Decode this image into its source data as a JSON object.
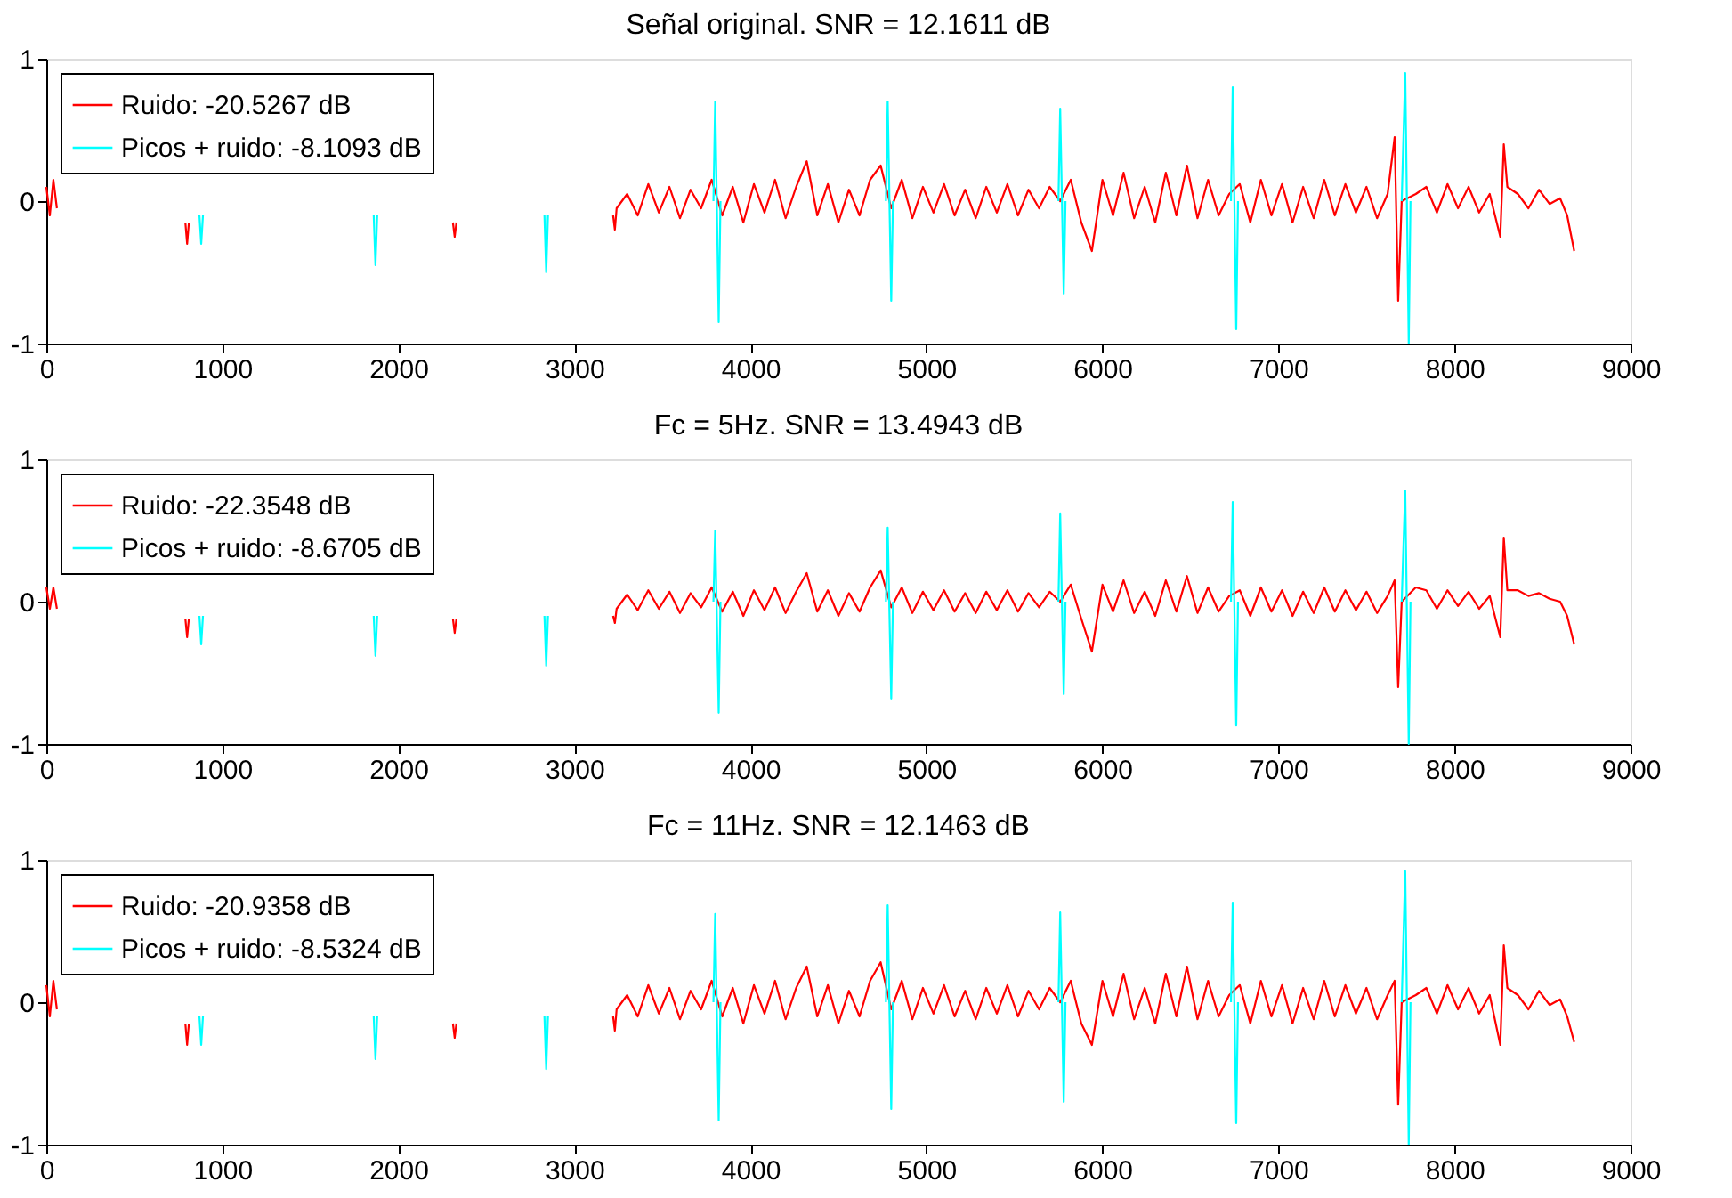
{
  "chart_data": [
    {
      "type": "line",
      "title": "Señal original. SNR = 12.1611 dB",
      "xlim": [
        0,
        9000
      ],
      "xticks": [
        0,
        1000,
        2000,
        3000,
        4000,
        5000,
        6000,
        7000,
        8000,
        9000
      ],
      "ylim": [
        -1,
        1
      ],
      "yticks": [
        -1,
        0,
        1
      ],
      "grid": false,
      "legend": "top left",
      "marker": "none",
      "line_style": "solid",
      "x": [
        0,
        20,
        40,
        60,
        70,
        790,
        800,
        810,
        820,
        2310,
        2320,
        2330,
        2340,
        3220,
        3230,
        3240,
        3300,
        3360,
        3420,
        3480,
        3540,
        3600,
        3660,
        3720,
        3780,
        3840,
        3900,
        3960,
        4020,
        4080,
        4140,
        4200,
        4260,
        4320,
        4380,
        4440,
        4500,
        4560,
        4620,
        4680,
        4740,
        4800,
        4860,
        4920,
        4980,
        5040,
        5100,
        5160,
        5220,
        5280,
        5340,
        5400,
        5460,
        5520,
        5580,
        5640,
        5700,
        5760,
        5820,
        5880,
        5940,
        6000,
        6060,
        6120,
        6180,
        6240,
        6300,
        6360,
        6420,
        6480,
        6540,
        6600,
        6660,
        6720,
        6780,
        6840,
        6900,
        6960,
        7020,
        7080,
        7140,
        7200,
        7260,
        7320,
        7380,
        7440,
        7500,
        7560,
        7620,
        7660,
        7680,
        7700,
        7780,
        7840,
        7900,
        7960,
        8020,
        8080,
        8140,
        8200,
        8260,
        8280,
        8300,
        8360,
        8420,
        8480,
        8540,
        8600,
        8640,
        8680
      ],
      "series": [
        {
          "name": "Ruido: -20.5267 dB",
          "color": "#ff0000",
          "values": [
            0.1,
            -0.1,
            0.15,
            -0.05,
            null,
            -0.15,
            -0.3,
            -0.15,
            null,
            -0.15,
            -0.25,
            -0.15,
            null,
            -0.1,
            -0.2,
            -0.05,
            0.05,
            -0.1,
            0.12,
            -0.08,
            0.1,
            -0.12,
            0.08,
            -0.05,
            0.15,
            -0.1,
            0.1,
            -0.15,
            0.12,
            -0.08,
            0.15,
            -0.12,
            0.1,
            0.28,
            -0.1,
            0.12,
            -0.15,
            0.08,
            -0.1,
            0.15,
            0.25,
            -0.05,
            0.15,
            -0.12,
            0.1,
            -0.08,
            0.12,
            -0.1,
            0.08,
            -0.12,
            0.1,
            -0.08,
            0.12,
            -0.1,
            0.08,
            -0.05,
            0.1,
            0.0,
            0.15,
            -0.15,
            -0.35,
            0.15,
            -0.1,
            0.2,
            -0.12,
            0.1,
            -0.15,
            0.2,
            -0.1,
            0.25,
            -0.12,
            0.15,
            -0.1,
            0.05,
            0.12,
            -0.15,
            0.15,
            -0.1,
            0.12,
            -0.15,
            0.1,
            -0.12,
            0.15,
            -0.1,
            0.12,
            -0.08,
            0.1,
            -0.12,
            0.05,
            0.45,
            -0.7,
            0.0,
            0.05,
            0.1,
            -0.08,
            0.12,
            -0.05,
            0.1,
            -0.08,
            0.05,
            -0.25,
            0.4,
            0.1,
            0.05,
            -0.05,
            0.08,
            -0.02,
            0.02,
            -0.1,
            -0.35
          ]
        },
        {
          "name": "Picos + ruido: -8.1093 dB",
          "color": "#00ffff",
          "x": [
            870,
            880,
            890,
            900,
            1860,
            1870,
            1880,
            1890,
            2830,
            2840,
            2850,
            2860,
            3790,
            3800,
            3820,
            3830,
            3840,
            4770,
            4780,
            4800,
            4810,
            4820,
            5750,
            5760,
            5780,
            5790,
            5800,
            6730,
            6740,
            6760,
            6770,
            6780,
            7700,
            7720,
            7740,
            7750
          ],
          "values": [
            -0.1,
            -0.3,
            -0.1,
            null,
            -0.1,
            -0.45,
            -0.1,
            null,
            -0.1,
            -0.5,
            -0.1,
            null,
            0,
            0.7,
            -0.85,
            0,
            null,
            0,
            0.7,
            -0.7,
            0,
            null,
            0,
            0.65,
            -0.65,
            0,
            null,
            0,
            0.8,
            -0.9,
            0,
            null,
            0,
            0.9,
            -1.0,
            0
          ]
        }
      ]
    },
    {
      "type": "line",
      "title": "Fc = 5Hz. SNR = 13.4943 dB",
      "xlim": [
        0,
        9000
      ],
      "xticks": [
        0,
        1000,
        2000,
        3000,
        4000,
        5000,
        6000,
        7000,
        8000,
        9000
      ],
      "ylim": [
        -1,
        1
      ],
      "yticks": [
        -1,
        0,
        1
      ],
      "grid": false,
      "legend": "top left",
      "marker": "none",
      "line_style": "solid",
      "x": [
        0,
        20,
        40,
        60,
        70,
        790,
        800,
        810,
        820,
        2310,
        2320,
        2330,
        2340,
        3220,
        3230,
        3240,
        3300,
        3360,
        3420,
        3480,
        3540,
        3600,
        3660,
        3720,
        3780,
        3840,
        3900,
        3960,
        4020,
        4080,
        4140,
        4200,
        4260,
        4320,
        4380,
        4440,
        4500,
        4560,
        4620,
        4680,
        4740,
        4800,
        4860,
        4920,
        4980,
        5040,
        5100,
        5160,
        5220,
        5280,
        5340,
        5400,
        5460,
        5520,
        5580,
        5640,
        5700,
        5760,
        5820,
        5880,
        5940,
        6000,
        6060,
        6120,
        6180,
        6240,
        6300,
        6360,
        6420,
        6480,
        6540,
        6600,
        6660,
        6720,
        6780,
        6840,
        6900,
        6960,
        7020,
        7080,
        7140,
        7200,
        7260,
        7320,
        7380,
        7440,
        7500,
        7560,
        7620,
        7660,
        7680,
        7700,
        7780,
        7840,
        7900,
        7960,
        8020,
        8080,
        8140,
        8200,
        8260,
        8280,
        8300,
        8360,
        8420,
        8480,
        8540,
        8600,
        8640,
        8680
      ],
      "series": [
        {
          "name": "Ruido: -22.3548 dB",
          "color": "#ff0000",
          "values": [
            0.1,
            -0.05,
            0.1,
            -0.05,
            null,
            -0.12,
            -0.25,
            -0.12,
            null,
            -0.12,
            -0.22,
            -0.12,
            null,
            -0.1,
            -0.15,
            -0.05,
            0.05,
            -0.06,
            0.08,
            -0.05,
            0.07,
            -0.08,
            0.06,
            -0.04,
            0.1,
            -0.07,
            0.07,
            -0.1,
            0.08,
            -0.06,
            0.1,
            -0.08,
            0.07,
            0.2,
            -0.07,
            0.08,
            -0.1,
            0.06,
            -0.07,
            0.1,
            0.22,
            -0.04,
            0.1,
            -0.08,
            0.07,
            -0.06,
            0.08,
            -0.07,
            0.06,
            -0.08,
            0.07,
            -0.06,
            0.08,
            -0.07,
            0.06,
            -0.04,
            0.07,
            0.0,
            0.12,
            -0.12,
            -0.35,
            0.12,
            -0.07,
            0.15,
            -0.08,
            0.07,
            -0.1,
            0.15,
            -0.07,
            0.18,
            -0.08,
            0.1,
            -0.07,
            0.04,
            0.08,
            -0.1,
            0.1,
            -0.07,
            0.08,
            -0.1,
            0.07,
            -0.08,
            0.1,
            -0.07,
            0.08,
            -0.06,
            0.07,
            -0.08,
            0.04,
            0.15,
            -0.6,
            0.0,
            0.1,
            0.08,
            -0.05,
            0.08,
            -0.03,
            0.07,
            -0.05,
            0.04,
            -0.25,
            0.45,
            0.08,
            0.08,
            0.04,
            0.06,
            0.02,
            0.0,
            -0.1,
            -0.3
          ]
        },
        {
          "name": "Picos + ruido: -8.6705 dB",
          "color": "#00ffff",
          "x": [
            870,
            880,
            890,
            900,
            1860,
            1870,
            1880,
            1890,
            2830,
            2840,
            2850,
            2860,
            3790,
            3800,
            3820,
            3830,
            3840,
            4770,
            4780,
            4800,
            4810,
            4820,
            5750,
            5760,
            5780,
            5790,
            5800,
            6730,
            6740,
            6760,
            6770,
            6780,
            7700,
            7720,
            7740,
            7750
          ],
          "values": [
            -0.1,
            -0.3,
            -0.1,
            null,
            -0.1,
            -0.38,
            -0.1,
            null,
            -0.1,
            -0.45,
            -0.1,
            null,
            0,
            0.5,
            -0.78,
            0,
            null,
            0,
            0.52,
            -0.68,
            0,
            null,
            0,
            0.62,
            -0.65,
            0,
            null,
            0,
            0.7,
            -0.87,
            0,
            null,
            0,
            0.78,
            -1.0,
            0
          ]
        }
      ]
    },
    {
      "type": "line",
      "title": "Fc = 11Hz. SNR = 12.1463 dB",
      "xlim": [
        0,
        9000
      ],
      "xticks": [
        0,
        1000,
        2000,
        3000,
        4000,
        5000,
        6000,
        7000,
        8000,
        9000
      ],
      "ylim": [
        -1,
        1
      ],
      "yticks": [
        -1,
        0,
        1
      ],
      "grid": false,
      "legend": "top left",
      "marker": "none",
      "line_style": "solid",
      "x": [
        0,
        20,
        40,
        60,
        70,
        790,
        800,
        810,
        820,
        2310,
        2320,
        2330,
        2340,
        3220,
        3230,
        3240,
        3300,
        3360,
        3420,
        3480,
        3540,
        3600,
        3660,
        3720,
        3780,
        3840,
        3900,
        3960,
        4020,
        4080,
        4140,
        4200,
        4260,
        4320,
        4380,
        4440,
        4500,
        4560,
        4620,
        4680,
        4740,
        4800,
        4860,
        4920,
        4980,
        5040,
        5100,
        5160,
        5220,
        5280,
        5340,
        5400,
        5460,
        5520,
        5580,
        5640,
        5700,
        5760,
        5820,
        5880,
        5940,
        6000,
        6060,
        6120,
        6180,
        6240,
        6300,
        6360,
        6420,
        6480,
        6540,
        6600,
        6660,
        6720,
        6780,
        6840,
        6900,
        6960,
        7020,
        7080,
        7140,
        7200,
        7260,
        7320,
        7380,
        7440,
        7500,
        7560,
        7620,
        7660,
        7680,
        7700,
        7780,
        7840,
        7900,
        7960,
        8020,
        8080,
        8140,
        8200,
        8260,
        8280,
        8300,
        8360,
        8420,
        8480,
        8540,
        8600,
        8640,
        8680
      ],
      "series": [
        {
          "name": "Ruido: -20.9358 dB",
          "color": "#ff0000",
          "values": [
            0.12,
            -0.1,
            0.15,
            -0.05,
            null,
            -0.15,
            -0.3,
            -0.15,
            null,
            -0.15,
            -0.25,
            -0.15,
            null,
            -0.1,
            -0.2,
            -0.05,
            0.05,
            -0.1,
            0.12,
            -0.08,
            0.1,
            -0.12,
            0.08,
            -0.05,
            0.15,
            -0.1,
            0.1,
            -0.15,
            0.12,
            -0.08,
            0.15,
            -0.12,
            0.1,
            0.25,
            -0.1,
            0.12,
            -0.15,
            0.08,
            -0.1,
            0.15,
            0.28,
            -0.05,
            0.15,
            -0.12,
            0.1,
            -0.08,
            0.12,
            -0.1,
            0.08,
            -0.12,
            0.1,
            -0.08,
            0.12,
            -0.1,
            0.08,
            -0.05,
            0.1,
            0.0,
            0.15,
            -0.15,
            -0.3,
            0.15,
            -0.1,
            0.2,
            -0.12,
            0.1,
            -0.15,
            0.2,
            -0.1,
            0.25,
            -0.12,
            0.15,
            -0.1,
            0.05,
            0.12,
            -0.15,
            0.15,
            -0.1,
            0.12,
            -0.15,
            0.1,
            -0.12,
            0.15,
            -0.1,
            0.12,
            -0.08,
            0.1,
            -0.12,
            0.05,
            0.15,
            -0.72,
            0.0,
            0.05,
            0.1,
            -0.08,
            0.12,
            -0.05,
            0.1,
            -0.08,
            0.05,
            -0.3,
            0.4,
            0.1,
            0.05,
            -0.05,
            0.08,
            -0.02,
            0.02,
            -0.1,
            -0.28
          ]
        },
        {
          "name": "Picos + ruido: -8.5324 dB",
          "color": "#00ffff",
          "x": [
            870,
            880,
            890,
            900,
            1860,
            1870,
            1880,
            1890,
            2830,
            2840,
            2850,
            2860,
            3790,
            3800,
            3820,
            3830,
            3840,
            4770,
            4780,
            4800,
            4810,
            4820,
            5750,
            5760,
            5780,
            5790,
            5800,
            6730,
            6740,
            6760,
            6770,
            6780,
            7700,
            7720,
            7740,
            7750
          ],
          "values": [
            -0.1,
            -0.3,
            -0.1,
            null,
            -0.1,
            -0.4,
            -0.1,
            null,
            -0.1,
            -0.47,
            -0.1,
            null,
            0,
            0.62,
            -0.83,
            0,
            null,
            0,
            0.68,
            -0.75,
            0,
            null,
            0,
            0.63,
            -0.7,
            0,
            null,
            0,
            0.7,
            -0.85,
            0,
            null,
            0,
            0.92,
            -1.0,
            0
          ]
        }
      ]
    }
  ]
}
